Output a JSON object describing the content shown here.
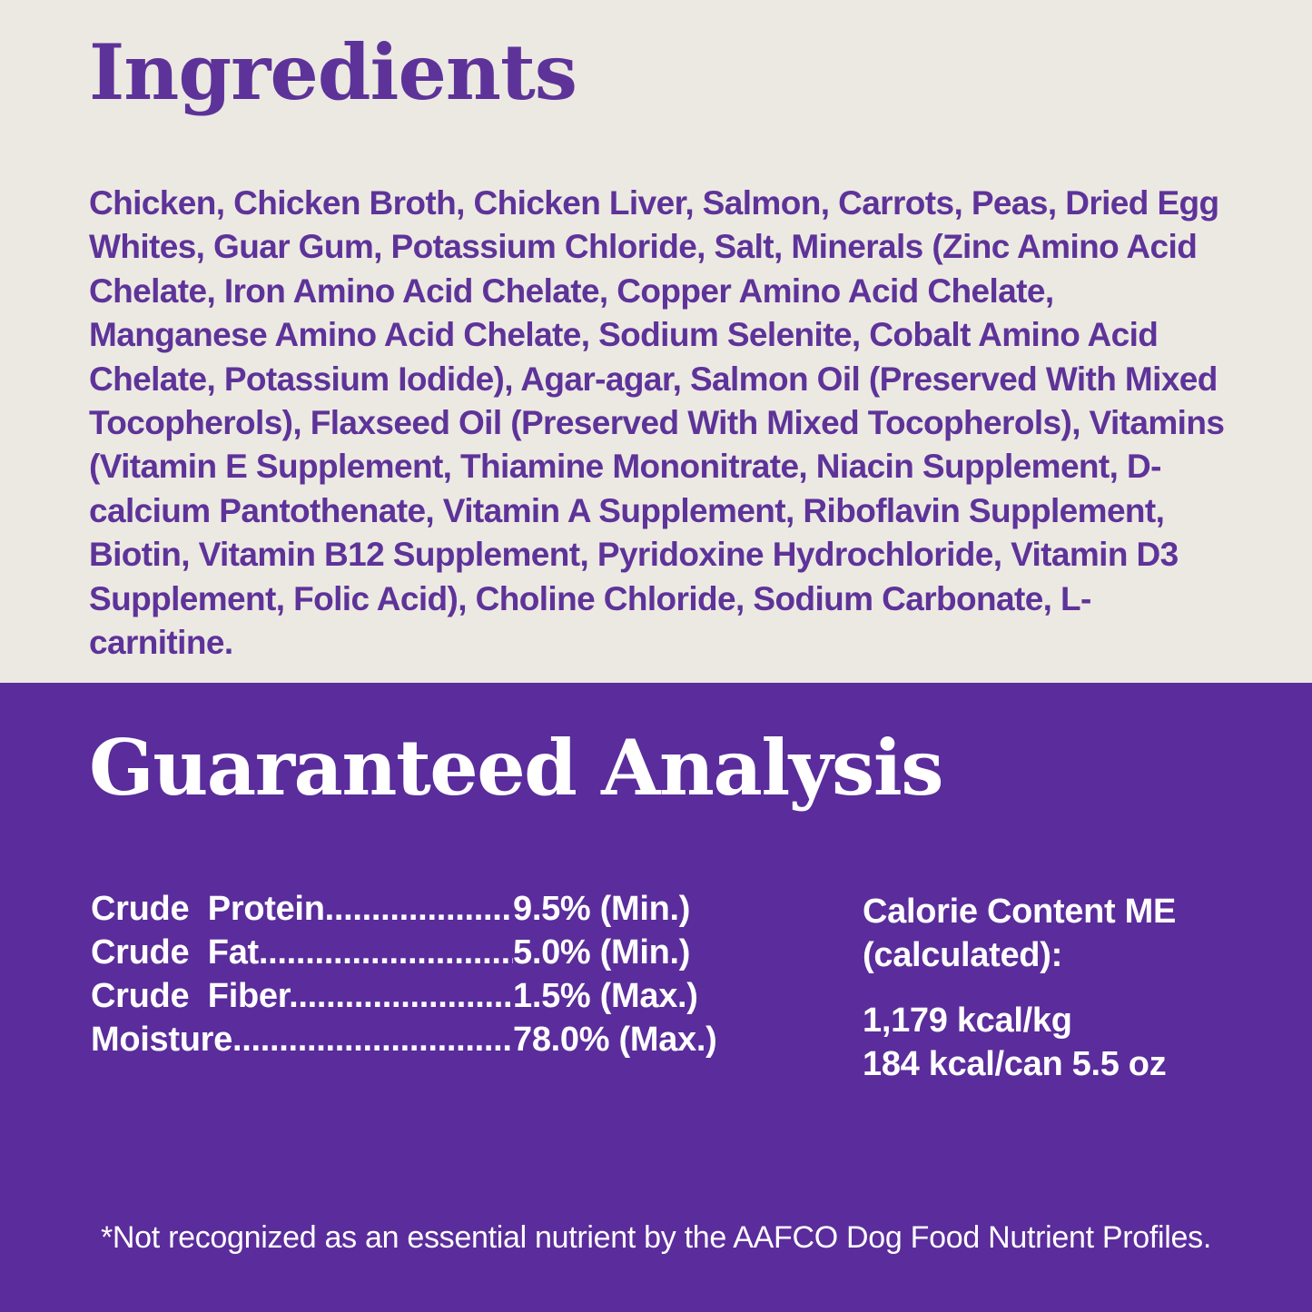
{
  "colors": {
    "cream": "#ece9e2",
    "purple": "#5b2c9b",
    "ink_purple": "#5e3399",
    "white": "#ffffff"
  },
  "ingredients": {
    "title": "Ingredients",
    "body": "Chicken, Chicken Broth, Chicken Liver, Salmon, Carrots, Peas, Dried Egg Whites, Guar Gum, Potassium Chloride, Salt, Minerals (Zinc Amino Acid Chelate, Iron Amino Acid Chelate, Copper Amino Acid Chelate, Manganese Amino Acid Chelate, Sodium Selenite, Cobalt Amino Acid Chelate, Potassium Iodide), Agar-agar, Salmon Oil (Preserved With Mixed Tocopherols), Flaxseed Oil (Preserved With Mixed Tocopherols), Vitamins (Vitamin E Supplement, Thiamine Mononitrate, Niacin Supplement, D-calcium Pantothenate, Vitamin A Supplement, Riboflavin Supplement, Biotin, Vitamin B12 Supplement, Pyridoxine Hydrochloride, Vitamin D3 Supplement, Folic Acid), Choline Chloride, Sodium Carbonate, L-carnitine."
  },
  "analysis": {
    "title": "Guaranteed Analysis",
    "rows": [
      {
        "label": "Crude  Protein",
        "leader": "........................................",
        "value": "9.5% (Min.)"
      },
      {
        "label": "Crude  Fat",
        "leader": "........................................",
        "value": "5.0% (Min.)"
      },
      {
        "label": "Crude  Fiber",
        "leader": "........................................",
        "value": "1.5% (Max.)"
      },
      {
        "label": "Moisture",
        "leader": "........................................",
        "value": "78.0% (Max.)"
      }
    ],
    "calorie": {
      "heading_line1": "Calorie Content ME",
      "heading_line2": "(calculated):",
      "value_line1": "1,179 kcal/kg",
      "value_line2": "184 kcal/can 5.5 oz"
    },
    "footnote": "*Not recognized as an essential nutrient by the AAFCO Dog Food Nutrient Profiles."
  }
}
